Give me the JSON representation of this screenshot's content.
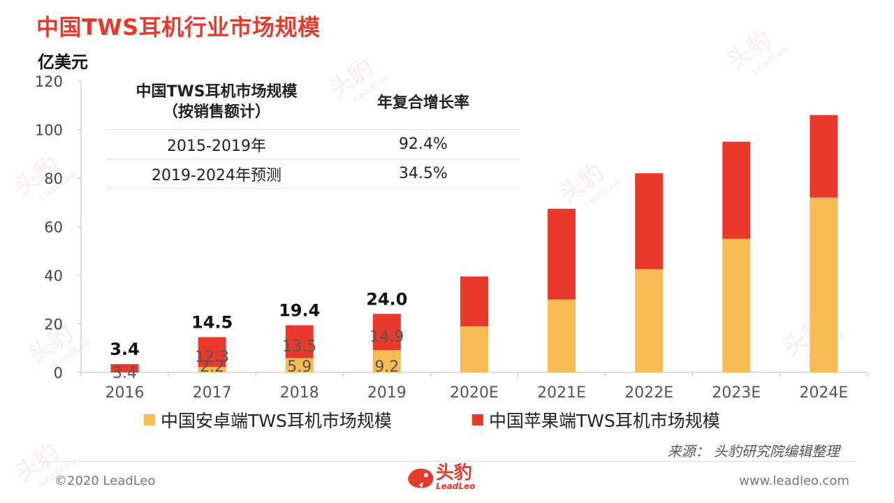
{
  "title": "中国TWS耳机行业市场规模",
  "colors": {
    "android": "#f7bc56",
    "apple": "#e8392c",
    "title": "#e53a2c"
  },
  "cagr_table": {
    "header_left_line1": "中国TWS耳机市场规模",
    "header_left_line2": "（按销售额计）",
    "header_right": "年复合增长率",
    "rows": [
      {
        "period": "2015-2019年",
        "rate": "92.4%"
      },
      {
        "period": "2019-2024年预测",
        "rate": "34.5%"
      }
    ]
  },
  "legend": {
    "android": "中国安卓端TWS耳机市场规模",
    "apple": "中国苹果端TWS耳机市场规模"
  },
  "source": "来源：   头豹研究院编辑整理",
  "footer": {
    "copyright": "©2020 LeadLeo",
    "website": "www.leadleo.com",
    "logo_text": "头豹",
    "logo_sub": "LeadLeo"
  },
  "watermark": {
    "text": "头豹",
    "sub": "LeadLeo"
  },
  "chart_data": {
    "type": "bar",
    "stacked": true,
    "ylabel": "亿美元",
    "ylim": [
      0,
      120
    ],
    "yticks": [
      0,
      20,
      40,
      60,
      80,
      100,
      120
    ],
    "categories": [
      "2016",
      "2017",
      "2018",
      "2019",
      "2020E",
      "2021E",
      "2022E",
      "2023E",
      "2024E"
    ],
    "series": [
      {
        "name": "中国安卓端TWS耳机市场规模",
        "color": "#f7bc56",
        "values": [
          0,
          2.2,
          5.9,
          9.2,
          19,
          30,
          42.5,
          55,
          72
        ],
        "labels": [
          "",
          "2.2",
          "5.9",
          "9.2",
          "",
          "",
          "",
          "",
          ""
        ]
      },
      {
        "name": "中国苹果端TWS耳机市场规模",
        "color": "#e8392c",
        "values": [
          3.4,
          12.3,
          13.5,
          14.9,
          20.5,
          37.4,
          39.5,
          40,
          34
        ],
        "labels": [
          "3.4",
          "12.3",
          "13.5",
          "14.9",
          "",
          "",
          "",
          "",
          ""
        ]
      }
    ],
    "totals": [
      "3.4",
      "14.5",
      "19.4",
      "24.0",
      "",
      "",
      "",
      "",
      ""
    ]
  }
}
